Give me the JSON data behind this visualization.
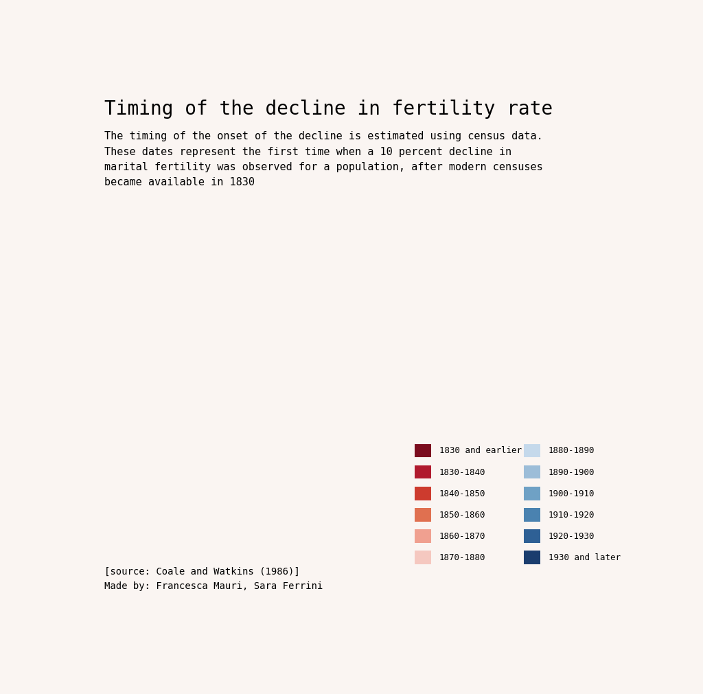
{
  "title": "Timing of the decline in fertility rate",
  "subtitle": "The timing of the onset of the decline is estimated using census data.\nThese dates represent the first time when a 10 percent decline in\nmarital fertility was observed for a population, after modern censuses\nbecame available in 1830",
  "source_text": "[source: Coale and Watkins (1986)]\nMade by: Francesca Mauri, Sara Ferrini",
  "background_color": "#faf5f2",
  "legend_labels": [
    "1830 and earlier",
    "1830-1840",
    "1840-1850",
    "1850-1860",
    "1860-1870",
    "1870-1880",
    "1880-1890",
    "1890-1900",
    "1900-1910",
    "1910-1920",
    "1920-1930",
    "1930 and later"
  ],
  "legend_colors": [
    "#7b0c1e",
    "#b01a2e",
    "#cd3b2e",
    "#e07050",
    "#f0a090",
    "#f5c8c0",
    "#c5d9eb",
    "#9cbdd8",
    "#6fa1c5",
    "#4a82b0",
    "#2e6095",
    "#1a3d6e"
  ],
  "title_fontsize": 20,
  "subtitle_fontsize": 11,
  "source_fontsize": 10,
  "font_family": "monospace"
}
